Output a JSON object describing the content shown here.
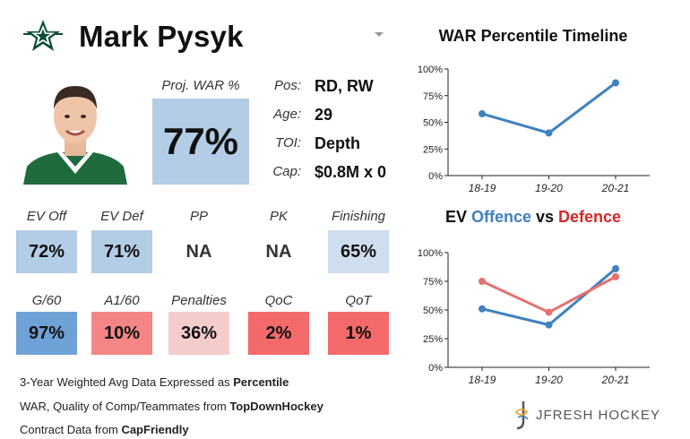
{
  "header": {
    "player_name": "Mark Pysyk",
    "team_logo": "dallas-stars-logo"
  },
  "projection": {
    "label": "Proj. WAR %",
    "value": "77%"
  },
  "info": [
    {
      "label": "Pos:",
      "value": "RD, RW"
    },
    {
      "label": "Age:",
      "value": "29"
    },
    {
      "label": "TOI:",
      "value": "Depth"
    },
    {
      "label": "Cap:",
      "value": "$0.8M x 0"
    }
  ],
  "stats_row1": [
    {
      "label": "EV Off",
      "value": "72%",
      "color": "#b4cde6"
    },
    {
      "label": "EV Def",
      "value": "71%",
      "color": "#b4cde6"
    },
    {
      "label": "PP",
      "value": "NA",
      "color": "#ffffff"
    },
    {
      "label": "PK",
      "value": "NA",
      "color": "#ffffff"
    },
    {
      "label": "Finishing",
      "value": "65%",
      "color": "#cfdeee"
    }
  ],
  "stats_row2": [
    {
      "label": "G/60",
      "value": "97%",
      "color": "#6ea1d6"
    },
    {
      "label": "A1/60",
      "value": "10%",
      "color": "#f48686"
    },
    {
      "label": "Penalties",
      "value": "36%",
      "color": "#f5cccc"
    },
    {
      "label": "QoC",
      "value": "2%",
      "color": "#f46a6a"
    },
    {
      "label": "QoT",
      "value": "1%",
      "color": "#f46a6a"
    }
  ],
  "footer": {
    "line1_prefix": "3-Year Weighted Avg Data Expressed as ",
    "line1_bold": "Percentile",
    "line2_prefix": "WAR, Quality of Comp/Teammates from ",
    "line2_bold": "TopDownHockey",
    "line3_prefix": "Contract Data from ",
    "line3_bold": "CapFriendly"
  },
  "brand": {
    "text": "JFRESH HOCKEY"
  },
  "chart_data": [
    {
      "type": "line",
      "title": "WAR Percentile Timeline",
      "categories": [
        "18-19",
        "19-20",
        "20-21"
      ],
      "series": [
        {
          "values": [
            58,
            40,
            87
          ],
          "color": "#3f80c0"
        }
      ],
      "ylim": [
        0,
        100
      ],
      "yticks": [
        "0%",
        "25%",
        "50%",
        "75%",
        "100%"
      ],
      "grid": false
    },
    {
      "type": "line",
      "title_parts": [
        {
          "text": "EV ",
          "color": "#111111"
        },
        {
          "text": "Offence",
          "color": "#3f80c0"
        },
        {
          "text": " vs ",
          "color": "#111111"
        },
        {
          "text": "Defence",
          "color": "#d62728"
        }
      ],
      "categories": [
        "18-19",
        "19-20",
        "20-21"
      ],
      "series": [
        {
          "name": "Offence",
          "values": [
            51,
            37,
            86
          ],
          "color": "#3f80c0"
        },
        {
          "name": "Defence",
          "values": [
            75,
            48,
            79
          ],
          "color": "#e87070"
        }
      ],
      "ylim": [
        0,
        100
      ],
      "yticks": [
        "0%",
        "25%",
        "50%",
        "75%",
        "100%"
      ],
      "grid": false
    }
  ]
}
